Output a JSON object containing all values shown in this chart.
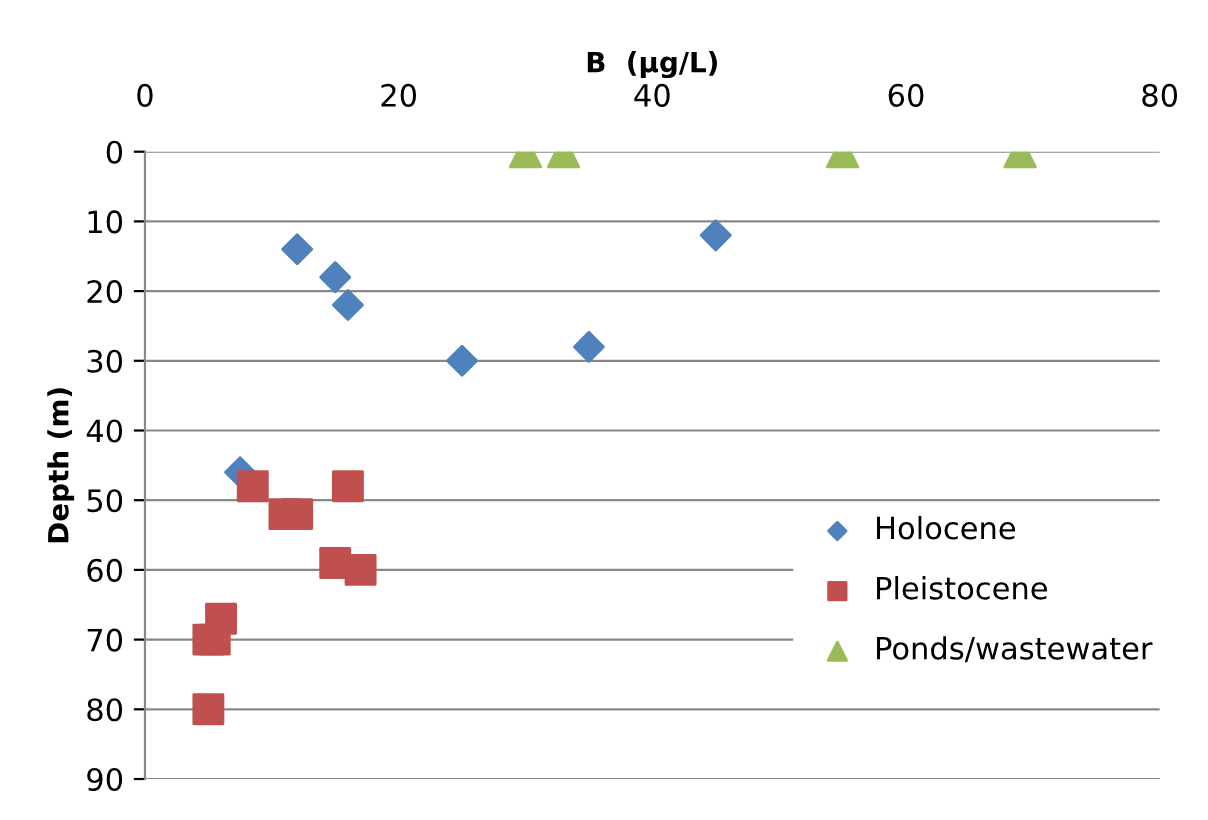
{
  "chart_data": {
    "type": "scatter",
    "xlabel": "B  (µg/L)",
    "ylabel": "Depth (m)",
    "xlim": [
      0,
      80
    ],
    "xticks": [
      0,
      20,
      40,
      60,
      80
    ],
    "ylim": [
      90,
      0
    ],
    "yticks": [
      0,
      10,
      20,
      30,
      40,
      50,
      60,
      70,
      80,
      90
    ],
    "grid": "y",
    "legend": "right",
    "series": [
      {
        "name": "Holocene",
        "color": "#4f81bd",
        "marker": "diamond",
        "x": [
          12,
          15,
          16,
          25,
          35,
          45,
          7.5
        ],
        "values": [
          14,
          18,
          22,
          30,
          28,
          12,
          46
        ]
      },
      {
        "name": "Pleistocene",
        "color": "#c0504d",
        "marker": "square",
        "x": [
          8.5,
          11,
          12,
          16,
          15,
          17,
          6,
          5,
          5.5,
          5
        ],
        "values": [
          48,
          52,
          52,
          48,
          59,
          60,
          67,
          70,
          70,
          80
        ]
      },
      {
        "name": "Ponds/wastewater",
        "color": "#9bbb59",
        "marker": "triangle",
        "x": [
          30,
          33,
          55,
          69
        ],
        "values": [
          0,
          0,
          0,
          0
        ]
      }
    ]
  }
}
